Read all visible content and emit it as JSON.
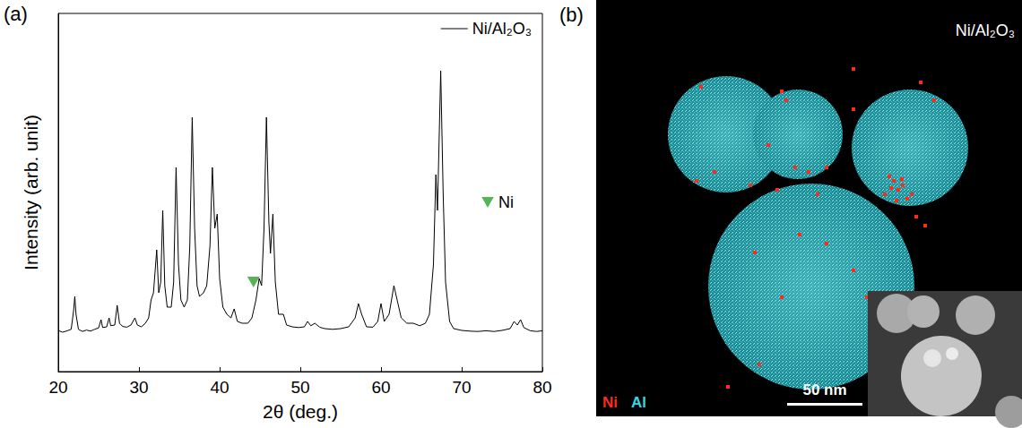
{
  "chart_data": {
    "type": "line",
    "title": "(a)",
    "x_label": "2θ (deg.)",
    "y_label": "Intensity (arb. unit)",
    "xlim": [
      20,
      80
    ],
    "xticks": [
      20,
      30,
      40,
      50,
      60,
      70,
      80
    ],
    "ylim": [
      0,
      100
    ],
    "tick_labels": "x",
    "legend": "upper right",
    "grid": false,
    "series": [
      {
        "name": "Ni/Al₂O₃",
        "type": "line",
        "color": "#000000",
        "line_style": "solid",
        "x": [
          20,
          20.5,
          21,
          21.6,
          21.9,
          22.05,
          22.2,
          22.5,
          23,
          23.5,
          24,
          24.5,
          25,
          25.3,
          25.5,
          26,
          26.3,
          26.5,
          27,
          27.3,
          27.6,
          28,
          28.5,
          29,
          29.5,
          29.8,
          30.3,
          30.8,
          31.2,
          31.5,
          31.8,
          32,
          32.2,
          32.45,
          32.7,
          32.95,
          33.2,
          33.5,
          34,
          34.3,
          34.6,
          34.9,
          35.2,
          35.6,
          36,
          36.3,
          36.6,
          36.9,
          37.2,
          37.5,
          38,
          38.4,
          38.8,
          39.1,
          39.4,
          39.7,
          40,
          40.4,
          40.9,
          41.4,
          41.8,
          42.2,
          42.8,
          43.5,
          44,
          44.5,
          44.9,
          45.2,
          45.5,
          45.8,
          46.1,
          46.3,
          46.6,
          46.9,
          47.3,
          47.9,
          48.3,
          49,
          49.8,
          50.5,
          50.9,
          51.3,
          51.8,
          52.4,
          53,
          54,
          55,
          56,
          56.8,
          57.2,
          57.6,
          58.2,
          59,
          59.6,
          60,
          60.4,
          61,
          61.6,
          62,
          62.5,
          63.2,
          64,
          64.8,
          65.5,
          66,
          66.5,
          66.8,
          67,
          67.4,
          67.7,
          68,
          68.5,
          69,
          70,
          71,
          72,
          73,
          74,
          75,
          76,
          76.5,
          76.9,
          77.3,
          77.7,
          78.5,
          79.3,
          80
        ],
        "values": [
          11.5,
          11,
          11.3,
          11.8,
          17,
          21,
          16,
          11.8,
          11.2,
          11.6,
          11.3,
          11.8,
          12.2,
          14.5,
          12.3,
          12.5,
          15,
          12.8,
          13,
          18.5,
          13.4,
          12.6,
          12.4,
          13,
          15,
          13,
          12.5,
          13.5,
          15,
          20,
          22,
          28,
          34,
          22,
          25,
          45,
          24,
          18,
          18,
          25,
          57,
          30,
          20,
          18,
          20,
          35,
          71,
          40,
          24,
          21,
          22,
          24,
          35,
          57,
          40,
          44,
          26,
          18,
          16,
          15,
          17.5,
          14,
          13.5,
          13.5,
          15,
          20,
          26,
          24,
          40,
          71,
          42,
          33,
          44,
          25,
          16,
          16,
          13,
          12.5,
          12.3,
          12.5,
          14,
          12.8,
          13.5,
          12.4,
          12,
          11.8,
          12,
          12.5,
          15,
          19,
          16,
          12.5,
          12.4,
          14,
          19,
          14,
          16,
          24,
          20,
          15,
          13.5,
          13.5,
          12.8,
          13.5,
          16,
          30,
          55,
          45,
          84,
          50,
          25,
          14,
          12,
          11.5,
          11.3,
          11.2,
          11.4,
          11.2,
          11.5,
          12,
          14,
          13,
          14.5,
          12.3,
          11.4,
          11.2,
          11.4
        ]
      },
      {
        "name": "Ni",
        "type": "scatter",
        "color": "#2ca02c",
        "marker": "triangle_down",
        "x": [
          44.2
        ],
        "values": [
          25
        ]
      }
    ]
  },
  "image_panel": {
    "title": "(b)",
    "label": "Ni/Al₂O₃",
    "legend": [
      {
        "text": "Ni",
        "color": "#ff2a1a"
      },
      {
        "text": "Al",
        "color": "#2fd8e2"
      }
    ],
    "scale_bar": "50 nm"
  }
}
